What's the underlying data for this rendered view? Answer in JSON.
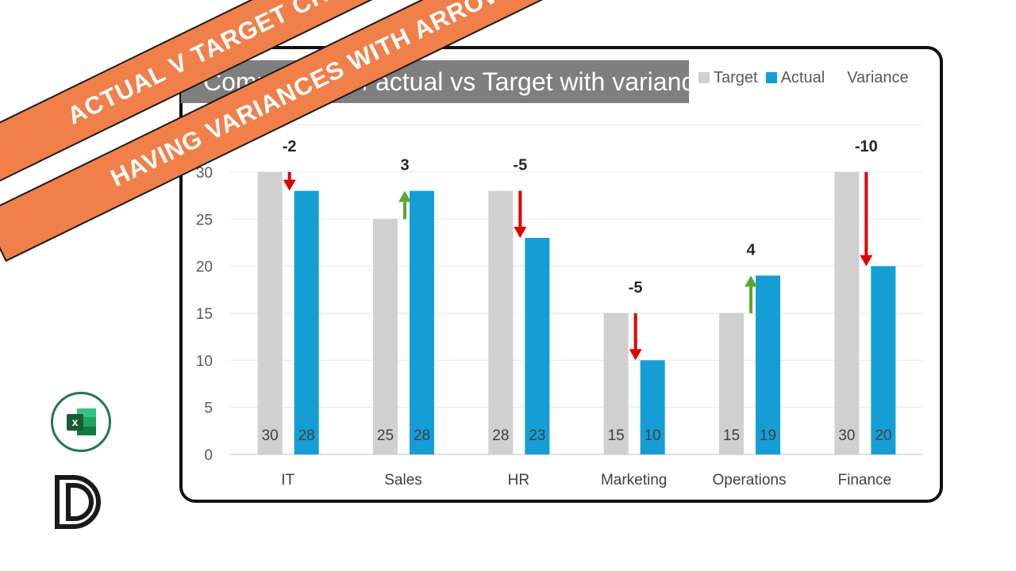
{
  "banners": {
    "line1": "ACTUAL V TARGET CHART",
    "line2": "HAVING VARIANCES WITH ARROWS"
  },
  "chart_title": "Comparison of actual vs Target with variances",
  "legend": {
    "target": "Target",
    "actual": "Actual",
    "variance": "Variance"
  },
  "colors": {
    "target": "#d0d0d0",
    "actual": "#159ed6",
    "increase_arrow": "#5aa832",
    "decrease_arrow": "#e00000",
    "banner": "#f07f4a",
    "excel_green": "#1e7b45"
  },
  "icons": {
    "excel": "excel-logo-icon",
    "brand": "brand-monogram-icon"
  },
  "chart_data": {
    "type": "bar",
    "title": "Comparison of actual vs Target with variances",
    "categories": [
      "IT",
      "Sales",
      "HR",
      "Marketing",
      "Operations",
      "Finance"
    ],
    "series": [
      {
        "name": "Target",
        "values": [
          30,
          25,
          28,
          15,
          15,
          30
        ]
      },
      {
        "name": "Actual",
        "values": [
          28,
          28,
          23,
          10,
          19,
          20
        ]
      }
    ],
    "variance": {
      "name": "Variance",
      "values": [
        -2,
        3,
        -5,
        -5,
        4,
        -10
      ]
    },
    "ylim": [
      0,
      35
    ],
    "yticks": [
      0,
      5,
      10,
      15,
      20,
      25,
      30
    ],
    "grid": true,
    "legend_position": "top-right"
  }
}
